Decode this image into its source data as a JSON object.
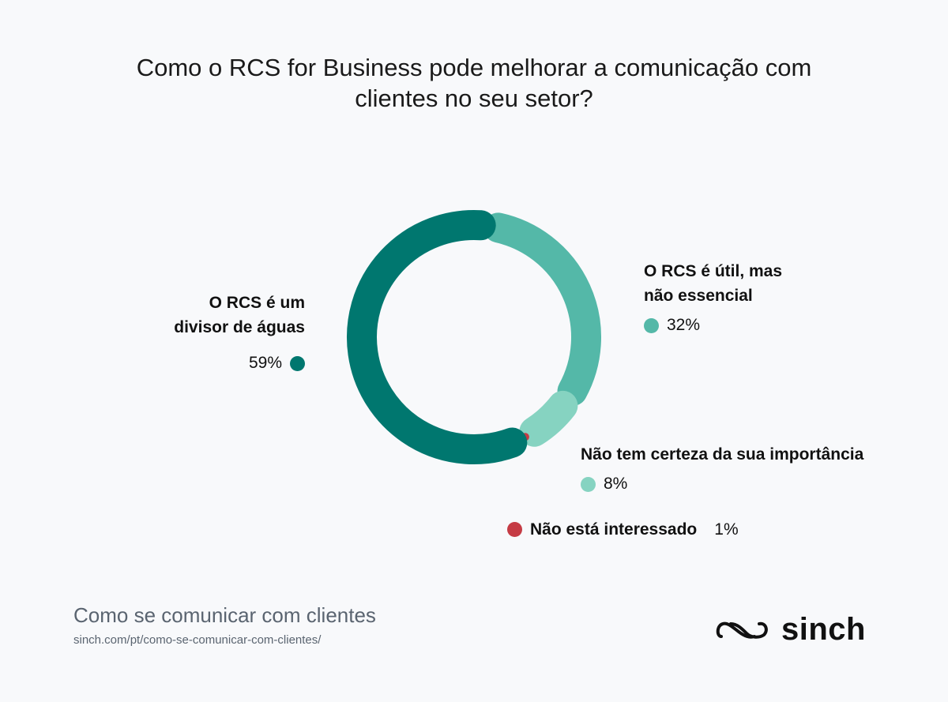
{
  "title": {
    "line1": "Como o RCS for Business pode melhorar a comunicação com",
    "line2": "clientes no seu setor?"
  },
  "chart_data": {
    "type": "pie",
    "variant": "donut",
    "series": [
      {
        "name": "O RCS é um divisor de águas",
        "value": 59,
        "label": "59%",
        "color": "#00776f"
      },
      {
        "name": "O RCS é útil, mas não essencial",
        "value": 32,
        "label": "32%",
        "color": "#54b8a8"
      },
      {
        "name": "Não tem certeza da sua importância",
        "value": 8,
        "label": "8%",
        "color": "#86d3c1"
      },
      {
        "name": "Não está interessado",
        "value": 1,
        "label": "1%",
        "color": "#c53b44"
      }
    ]
  },
  "labels": {
    "s0_line1": "O RCS é um",
    "s0_line2": "divisor de águas",
    "s1_line1": "O RCS é útil, mas",
    "s1_line2": "não essencial",
    "s2": "Não tem certeza da sua importância",
    "s3": "Não está interessado"
  },
  "footer": {
    "title": "Como se comunicar com clientes",
    "url": "sinch.com/pt/como-se-comunicar-com-clientes/"
  },
  "logo": {
    "text": "sinch"
  }
}
